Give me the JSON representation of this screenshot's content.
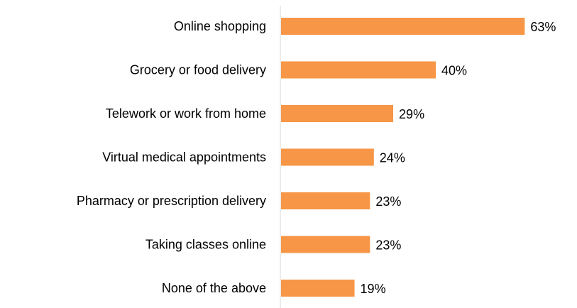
{
  "chart_data": {
    "type": "barh",
    "categories": [
      "Online shopping",
      "Grocery or food delivery",
      "Telework or work from home",
      "Virtual medical appointments",
      "Pharmacy or prescription delivery",
      "Taking classes online",
      "None of the above"
    ],
    "values": [
      63,
      40,
      29,
      24,
      23,
      23,
      19
    ],
    "value_labels": [
      "63%",
      "40%",
      "29%",
      "24%",
      "23%",
      "23%",
      "19%"
    ],
    "color": "#f79646"
  }
}
